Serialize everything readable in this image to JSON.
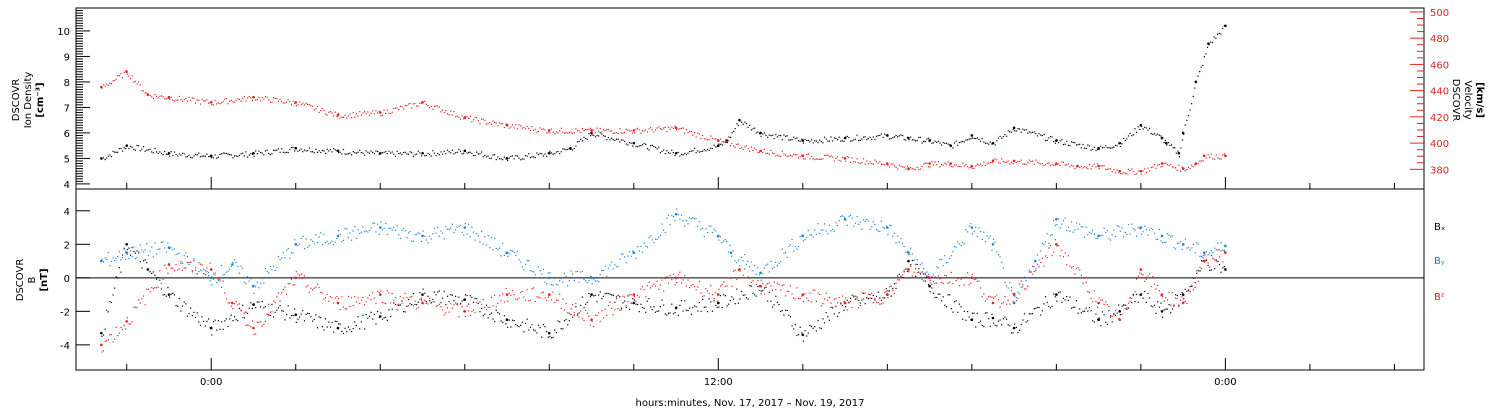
{
  "chart_data": [
    {
      "type": "scatter",
      "panel": "top",
      "ylabel_left": [
        "DSCOVR",
        "Ion Density",
        "[cm⁻³]"
      ],
      "ylabel_right": [
        "DSCOVR",
        "Velocity",
        "[km/s]"
      ],
      "ylim_left": [
        3.8,
        10.9
      ],
      "ylim_right": [
        365,
        503
      ],
      "yticks_left": [
        "4",
        "5",
        "6",
        "7",
        "8",
        "9",
        "10"
      ],
      "yticks_right": [
        "380",
        "400",
        "420",
        "440",
        "460",
        "480",
        "500"
      ],
      "colors": {
        "density": "#000000",
        "velocity": "#e32222"
      },
      "series": [
        {
          "key": "density",
          "axis": "left",
          "color": "#000000",
          "x": [
            -2.6,
            -2,
            -1,
            0,
            1,
            2,
            3,
            4,
            5,
            6,
            7,
            8,
            8.5,
            9,
            10,
            11,
            12,
            12.2,
            12.5,
            13,
            14,
            15,
            16,
            16.5,
            17,
            17.5,
            18,
            18.5,
            19,
            20,
            21,
            21.5,
            22,
            22.5,
            22.6,
            22.9,
            23,
            23.3,
            23.6,
            24
          ],
          "y": [
            5.0,
            5.5,
            5.2,
            5.1,
            5.2,
            5.4,
            5.3,
            5.2,
            5.2,
            5.3,
            5.0,
            5.2,
            5.4,
            6.0,
            5.6,
            5.2,
            5.5,
            5.7,
            6.5,
            6.0,
            5.7,
            5.8,
            5.9,
            5.8,
            5.7,
            5.5,
            5.9,
            5.6,
            6.2,
            5.7,
            5.4,
            5.6,
            6.3,
            5.8,
            5.6,
            5.2,
            6.0,
            8.0,
            9.5,
            10.2
          ]
        },
        {
          "key": "velocity",
          "axis": "left",
          "color": "#e32222",
          "x": [
            -2.6,
            -2,
            -1.5,
            -1,
            0,
            1,
            2,
            3,
            4,
            5,
            6,
            7,
            8,
            9,
            10,
            11,
            12,
            13,
            14,
            15,
            16,
            16.5,
            17,
            17.5,
            18,
            18.5,
            19,
            20,
            20.5,
            21,
            21.5,
            22,
            22.5,
            23,
            23.3,
            23.5,
            24
          ],
          "y": [
            7.8,
            8.4,
            7.5,
            7.4,
            7.2,
            7.4,
            7.2,
            6.7,
            6.8,
            7.2,
            6.6,
            6.3,
            6.1,
            6.1,
            6.1,
            6.2,
            5.7,
            5.3,
            5.1,
            5.0,
            4.8,
            4.6,
            4.8,
            4.8,
            4.7,
            4.9,
            4.9,
            4.8,
            4.7,
            4.7,
            4.5,
            4.5,
            4.8,
            4.6,
            4.8,
            5.1,
            5.1
          ]
        }
      ]
    },
    {
      "type": "scatter",
      "panel": "bottom",
      "ylabel": [
        "DSCOVR",
        "B",
        "[nT]"
      ],
      "ylim": [
        -5.5,
        5.3
      ],
      "yticks": [
        "-4",
        "-2",
        "0",
        "2",
        "4"
      ],
      "zero_line": true,
      "series": [
        {
          "key": "bx",
          "name": "Bₓ",
          "color": "#000000",
          "x": [
            -2.6,
            -2,
            -1.5,
            -1,
            0,
            1,
            2,
            3,
            4,
            5,
            6,
            7,
            8,
            9,
            10,
            11,
            12,
            13,
            14,
            15,
            16,
            16.5,
            17,
            18,
            18.5,
            19,
            20,
            21,
            21.5,
            22,
            22.5,
            23,
            23.5,
            24
          ],
          "y": [
            -3.3,
            2.0,
            0.5,
            -1.0,
            -3.0,
            -1.6,
            -2.2,
            -3.0,
            -2.3,
            -1.0,
            -1.3,
            -2.5,
            -3.3,
            -1.0,
            -1.5,
            -1.8,
            -1.5,
            -0.5,
            -3.4,
            -1.5,
            -1.0,
            1.0,
            -0.5,
            -2.5,
            -2.4,
            -3.0,
            -1.0,
            -2.5,
            -2.0,
            -1.0,
            -2.0,
            -1.0,
            1.0,
            0.5
          ]
        },
        {
          "key": "by",
          "name": "Bᵧ",
          "color": "#1a85d6",
          "x": [
            -2.6,
            -2,
            -1,
            0,
            0.5,
            1,
            2,
            3,
            4,
            5,
            6,
            7,
            8,
            9,
            10,
            11,
            12,
            12.3,
            13,
            14,
            15,
            16,
            16.5,
            17,
            18,
            18.5,
            19,
            19.5,
            20,
            21,
            22,
            22.5,
            23,
            23.5,
            24
          ],
          "y": [
            1.0,
            1.5,
            1.8,
            0.0,
            0.8,
            -0.5,
            2.0,
            2.5,
            3.0,
            2.5,
            3.0,
            1.5,
            0.0,
            0.0,
            1.5,
            3.8,
            2.5,
            1.5,
            0.3,
            2.5,
            3.5,
            3.0,
            1.5,
            0.0,
            3.0,
            2.0,
            -1.5,
            1.0,
            3.5,
            2.5,
            3.0,
            2.5,
            2.0,
            1.5,
            1.9
          ]
        },
        {
          "key": "bz",
          "name": "Bᶻ",
          "color": "#e32222",
          "x": [
            -2.6,
            -2,
            -1,
            0,
            0.5,
            1,
            2,
            3,
            4,
            5,
            6,
            7,
            8,
            9,
            10,
            11,
            12,
            12.5,
            13,
            14,
            15,
            16,
            16.5,
            17,
            18,
            18.5,
            19,
            20,
            21,
            21.5,
            22,
            22.5,
            23,
            23.5,
            24
          ],
          "y": [
            -4.0,
            -2.6,
            0.8,
            0.5,
            -1.5,
            -3.0,
            0.0,
            -1.5,
            -1.0,
            -1.5,
            -2.0,
            -1.0,
            -1.0,
            -2.5,
            -1.0,
            0.0,
            -1.0,
            0.5,
            -0.5,
            -1.0,
            -1.5,
            -1.0,
            0.5,
            0.0,
            0.0,
            -1.5,
            -1.0,
            2.0,
            -1.5,
            -2.5,
            0.5,
            -1.0,
            -1.5,
            1.0,
            1.5
          ]
        }
      ]
    }
  ],
  "legend_bottom": {
    "bx": "Bₓ",
    "by": "Bᵧ",
    "bz": "Bᶻ"
  },
  "x_axis": {
    "xlim_hours": [
      -3.2,
      28.7
    ],
    "major_tick_labels": [
      {
        "hour": 0,
        "label": "0:00"
      },
      {
        "hour": 12,
        "label": "12:00"
      },
      {
        "hour": 24,
        "label": "0:00"
      }
    ],
    "minor_tick_step_hours": 2,
    "xlabel": "hours:minutes, Nov. 17, 2017 – Nov. 19, 2017"
  }
}
